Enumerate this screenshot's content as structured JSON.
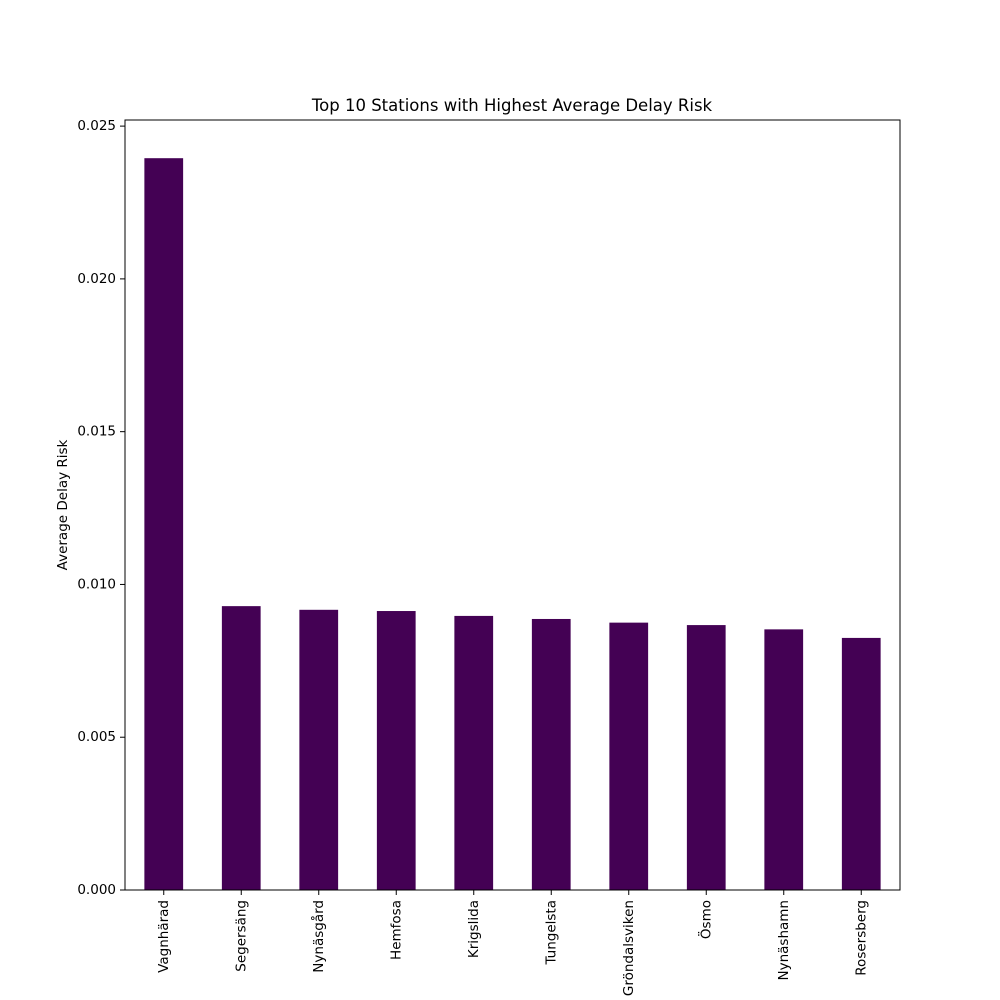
{
  "chart_data": {
    "type": "bar",
    "title": "Top 10 Stations with Highest Average Delay Risk",
    "xlabel": "",
    "ylabel": "Average Delay Risk",
    "categories": [
      "Vagnhärad",
      "Segersäng",
      "Nynäsgård",
      "Hemfosa",
      "Krigslida",
      "Tungelsta",
      "Gröndalsviken",
      "Ösmo",
      "Nynäshamn",
      "Rosersberg"
    ],
    "values": [
      0.02395,
      0.00929,
      0.00917,
      0.00913,
      0.00897,
      0.00887,
      0.00875,
      0.00867,
      0.00853,
      0.00825
    ],
    "ylim": [
      0,
      0.0252
    ],
    "yticks": [
      "0.000",
      "0.005",
      "0.010",
      "0.015",
      "0.020",
      "0.025"
    ],
    "grid": false,
    "bar_color": "#440154"
  }
}
